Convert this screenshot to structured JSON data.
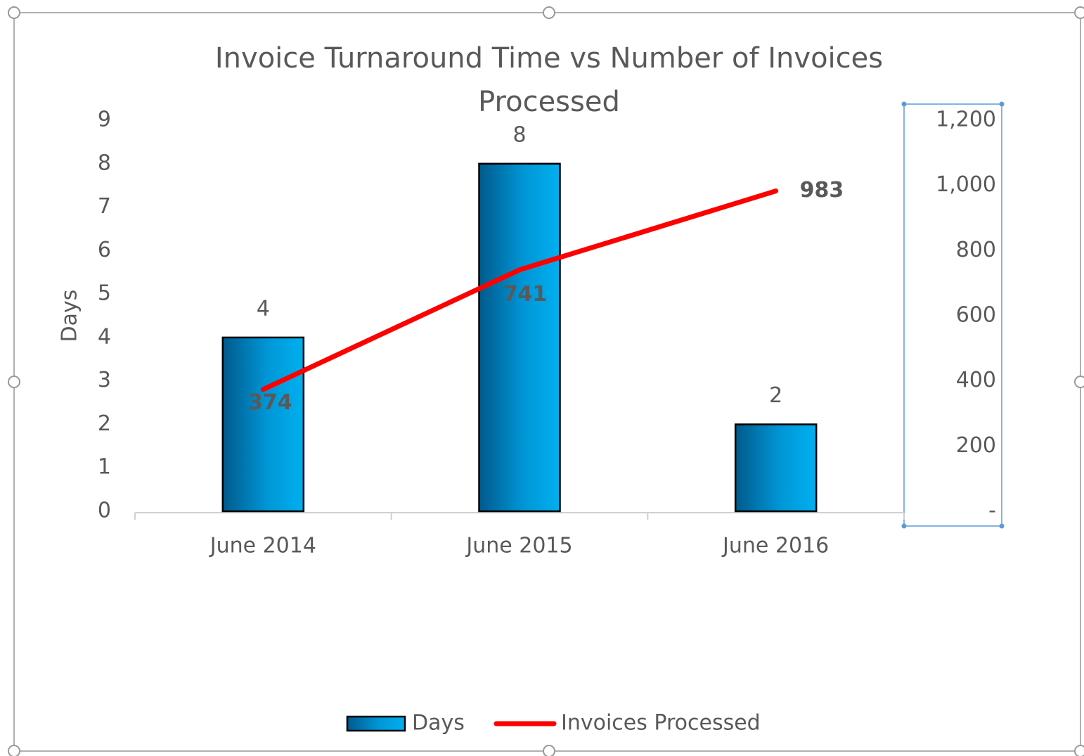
{
  "chart_data": {
    "type": "bar_line",
    "title": "Invoice Turnaround Time vs Number of Invoices Processed",
    "y_axis_label": "Days",
    "categories": [
      "June 2014",
      "June 2015",
      "June 2016"
    ],
    "series": [
      {
        "name": "Days",
        "type": "bar",
        "color": "#00b0f0",
        "values": [
          4,
          8,
          2
        ]
      },
      {
        "name": "Invoices Processed",
        "type": "line",
        "color": "#ff0000",
        "axis": "y2",
        "values": [
          374,
          741,
          983
        ]
      }
    ],
    "ylim": [
      0,
      9
    ],
    "yticks": [
      0,
      1,
      2,
      3,
      4,
      5,
      6,
      7,
      8,
      9
    ],
    "y2lim": [
      0,
      1200
    ],
    "y2ticks": [
      {
        "value": 0,
        "label": "-"
      },
      200,
      400,
      600,
      800,
      {
        "value": 1000,
        "label": "1,000"
      },
      {
        "value": 1200,
        "label": "1,200"
      }
    ],
    "legend": "bottom"
  }
}
